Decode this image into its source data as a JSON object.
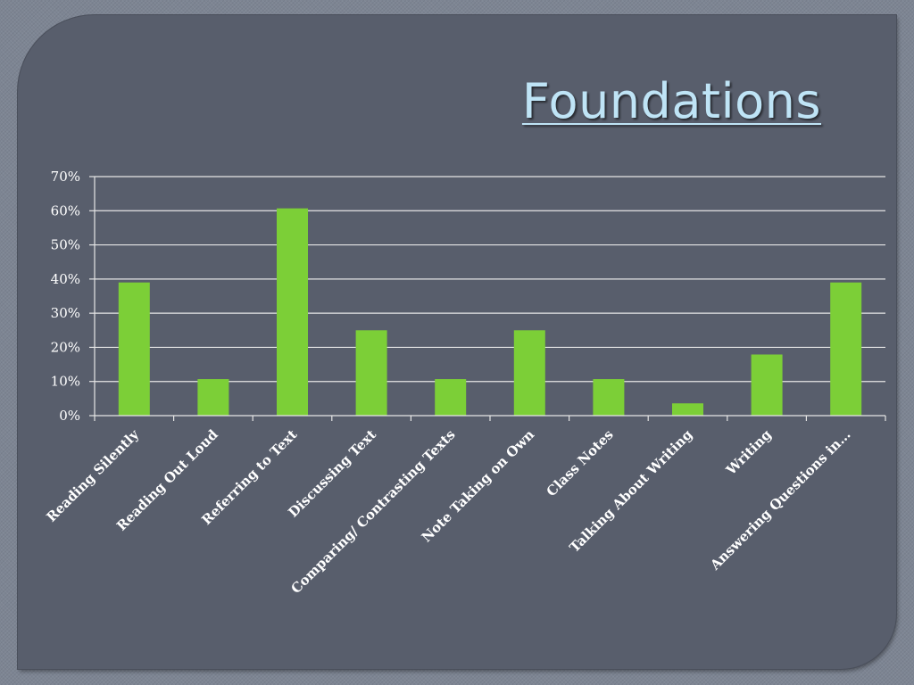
{
  "slide": {
    "title": "Foundations"
  },
  "colors": {
    "background": "#585e6c",
    "bar": "#7ccf37",
    "grid": "#e6e6e6",
    "title": "#bfe4f6",
    "text": "#ffffff"
  },
  "chart_data": {
    "type": "bar",
    "title": "",
    "xlabel": "",
    "ylabel": "",
    "categories": [
      "Reading Silently",
      "Reading Out Loud",
      "Referring to Text",
      "Discussing Text",
      "Comparing/ Contrasting Texts",
      "Note Taking on Own",
      "Class Notes",
      "Talking About Writing",
      "Writing",
      "Answering Questions in…"
    ],
    "values": [
      0.39,
      0.107,
      0.607,
      0.25,
      0.107,
      0.25,
      0.107,
      0.036,
      0.179,
      0.39
    ],
    "ylim": [
      0,
      0.7
    ],
    "yticks": [
      0,
      0.1,
      0.2,
      0.3,
      0.4,
      0.5,
      0.6,
      0.7
    ],
    "ytick_labels": [
      "0%",
      "10%",
      "20%",
      "30%",
      "40%",
      "50%",
      "60%",
      "70%"
    ],
    "grid": true,
    "legend": "none",
    "bar_color": "#7ccf37"
  }
}
